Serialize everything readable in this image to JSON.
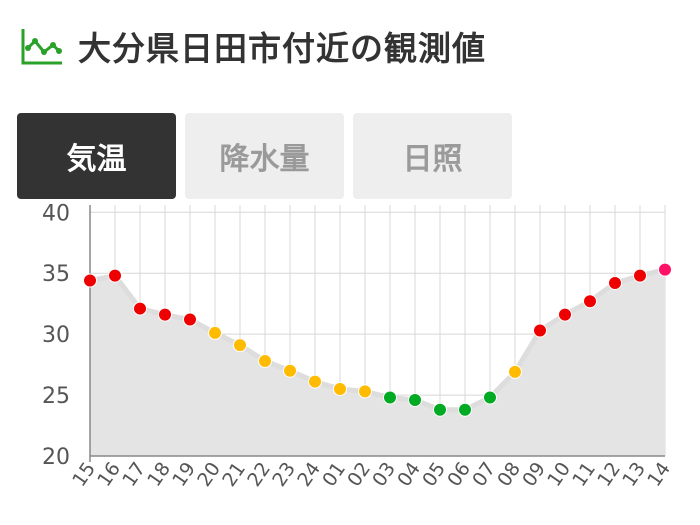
{
  "header": {
    "title": "大分県日田市付近の観測値",
    "icon": "line-chart-icon",
    "icon_color": "#2aa22a"
  },
  "tabs": [
    {
      "label": "気温",
      "active": true
    },
    {
      "label": "降水量",
      "active": false
    },
    {
      "label": "日照",
      "active": false
    }
  ],
  "chart_data": {
    "type": "line",
    "categories": [
      "15",
      "16",
      "17",
      "18",
      "19",
      "20",
      "21",
      "22",
      "23",
      "24",
      "01",
      "02",
      "03",
      "04",
      "05",
      "06",
      "07",
      "08",
      "09",
      "10",
      "11",
      "12",
      "13",
      "14"
    ],
    "values": [
      34.4,
      34.8,
      32.1,
      31.6,
      31.2,
      30.1,
      29.1,
      27.8,
      27.0,
      26.1,
      25.5,
      25.3,
      24.8,
      24.6,
      23.8,
      23.8,
      24.8,
      26.9,
      30.3,
      31.6,
      32.7,
      34.2,
      34.8,
      35.3
    ],
    "point_colors": [
      "#ee0000",
      "#ee0000",
      "#ee0000",
      "#ee0000",
      "#ee0000",
      "#ffbb00",
      "#ffbb00",
      "#ffbb00",
      "#ffbb00",
      "#ffbb00",
      "#ffbb00",
      "#ffbb00",
      "#00aa22",
      "#00aa22",
      "#00aa22",
      "#00aa22",
      "#00aa22",
      "#ffbb00",
      "#ee0000",
      "#ee0000",
      "#ee0000",
      "#ee0000",
      "#ee0000",
      "#ff1166"
    ],
    "yticks": [
      20,
      25,
      30,
      35,
      40
    ],
    "ylim": [
      20,
      40
    ],
    "grid": true,
    "line_color": "#dddddd",
    "area_color": "#e4e4e4"
  }
}
